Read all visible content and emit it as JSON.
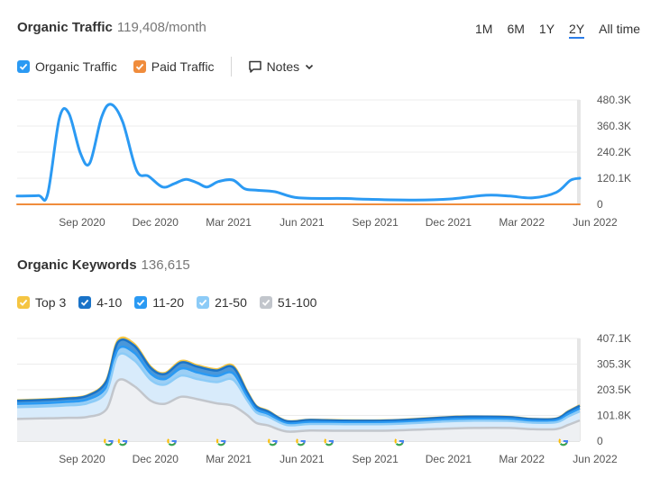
{
  "traffic": {
    "title": "Organic Traffic",
    "value": "119,408/month",
    "periods": [
      "1M",
      "6M",
      "1Y",
      "2Y",
      "All time"
    ],
    "active_period": "2Y",
    "legend": [
      {
        "label": "Organic Traffic",
        "color": "#2b9af3"
      },
      {
        "label": "Paid Traffic",
        "color": "#f08c3c"
      }
    ],
    "notes_label": "Notes"
  },
  "keywords": {
    "title": "Organic Keywords",
    "value": "136,615",
    "legend": [
      {
        "label": "Top 3",
        "color": "#f5c542"
      },
      {
        "label": "4-10",
        "color": "#1a73c8"
      },
      {
        "label": "11-20",
        "color": "#2b9af3"
      },
      {
        "label": "21-50",
        "color": "#8ccbf7"
      },
      {
        "label": "51-100",
        "color": "#c2c6cc"
      }
    ]
  },
  "chart_data": [
    {
      "type": "line",
      "title": "Organic Traffic",
      "x_ticks": [
        "Sep 2020",
        "Dec 2020",
        "Mar 2021",
        "Jun 2021",
        "Sep 2021",
        "Dec 2021",
        "Mar 2022",
        "Jun 2022"
      ],
      "y_ticks": [
        "0",
        "120.1K",
        "240.2K",
        "360.3K",
        "480.3K"
      ],
      "ylim": [
        0,
        480300
      ],
      "xlim": [
        0,
        24
      ],
      "grid": true,
      "series": [
        {
          "name": "Organic Traffic",
          "color": "#2b9af3",
          "x": [
            0,
            0.9,
            1.3,
            1.8,
            2.2,
            2.7,
            3.1,
            3.6,
            4.0,
            4.5,
            5.1,
            5.6,
            6.2,
            6.7,
            7.2,
            7.7,
            8.1,
            8.6,
            9.2,
            9.7,
            10.2,
            11.0,
            12.0,
            14.0,
            15.0,
            17.0,
            18.5,
            20.0,
            21.0,
            22.0,
            23.0,
            23.6,
            24.0
          ],
          "y": [
            38000,
            40000,
            46000,
            395000,
            420000,
            235000,
            190000,
            400000,
            460000,
            380000,
            155000,
            130000,
            80000,
            95000,
            115000,
            98000,
            80000,
            105000,
            112000,
            72000,
            65000,
            58000,
            30000,
            27000,
            23000,
            20000,
            25000,
            42000,
            38000,
            30000,
            55000,
            110000,
            120000
          ]
        },
        {
          "name": "Paid Traffic",
          "color": "#f08c3c",
          "x": [
            0,
            24
          ],
          "y": [
            0,
            0
          ]
        }
      ]
    },
    {
      "type": "area",
      "title": "Organic Keywords",
      "x_ticks": [
        "Sep 2020",
        "Dec 2020",
        "Mar 2021",
        "Jun 2021",
        "Sep 2021",
        "Dec 2021",
        "Mar 2022",
        "Jun 2022"
      ],
      "y_ticks": [
        "0",
        "101.8K",
        "203.5K",
        "305.3K",
        "407.1K"
      ],
      "ylim": [
        0,
        407100
      ],
      "xlim": [
        0,
        24
      ],
      "grid": true,
      "x": [
        0,
        1.0,
        2.0,
        3.0,
        3.8,
        4.3,
        5.0,
        5.7,
        6.3,
        7.0,
        7.7,
        8.5,
        9.2,
        9.8,
        10.2,
        10.7,
        11.5,
        12.5,
        14.0,
        16.0,
        18.5,
        19.5,
        21.0,
        22.0,
        23.0,
        23.5,
        24.0
      ],
      "series": [
        {
          "name": "Top 3",
          "color": "#f5c542",
          "y": [
            162000,
            165000,
            170000,
            182000,
            240000,
            400000,
            385000,
            295000,
            270000,
            318000,
            300000,
            285000,
            300000,
            200000,
            140000,
            120000,
            80000,
            85000,
            82000,
            83000,
            96000,
            98000,
            96000,
            88000,
            90000,
            118000,
            142000
          ]
        },
        {
          "name": "4-10",
          "y": [
            160000,
            163000,
            168000,
            180000,
            236000,
            392000,
            378000,
            290000,
            266000,
            312000,
            295000,
            280000,
            294000,
            196000,
            138000,
            118000,
            79000,
            84000,
            81000,
            82000,
            95000,
            97000,
            95000,
            87000,
            89000,
            116000,
            140000
          ]
        },
        {
          "name": "11-20",
          "y": [
            148000,
            150000,
            155000,
            165000,
            215000,
            365000,
            350000,
            268000,
            246000,
            288000,
            272000,
            258000,
            270000,
            180000,
            126000,
            108000,
            71000,
            76000,
            74000,
            75000,
            87000,
            89000,
            88000,
            80000,
            82000,
            107000,
            130000
          ]
        },
        {
          "name": "21-50",
          "y": [
            135000,
            137000,
            141000,
            150000,
            195000,
            340000,
            320000,
            243000,
            224000,
            260000,
            246000,
            234000,
            244000,
            164000,
            114000,
            98000,
            64000,
            68000,
            67000,
            68000,
            79000,
            81000,
            80000,
            73000,
            75000,
            97000,
            118000
          ]
        },
        {
          "name": "51-100",
          "y": [
            88000,
            90000,
            92000,
            96000,
            125000,
            240000,
            218000,
            160000,
            148000,
            176000,
            166000,
            150000,
            140000,
            104000,
            72000,
            62000,
            38000,
            42000,
            41000,
            42000,
            50000,
            52000,
            52000,
            47000,
            48000,
            64000,
            82000
          ]
        }
      ],
      "annotations": {
        "icon": "google-update-icon",
        "x": [
          3.9,
          4.5,
          6.6,
          8.7,
          10.9,
          12.1,
          13.3,
          16.3,
          23.3
        ]
      }
    }
  ]
}
